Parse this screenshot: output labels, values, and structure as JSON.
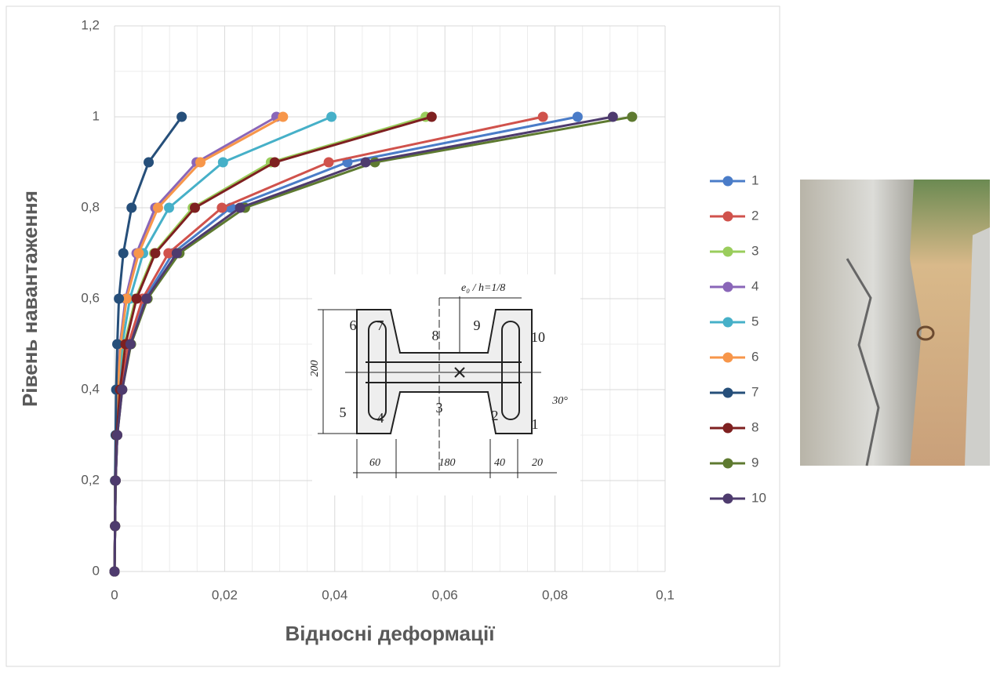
{
  "chart_data": {
    "type": "line",
    "x_label": "Відносні деформації",
    "y_label": "Рівень навантаження",
    "xlim": [
      0,
      0.1
    ],
    "xticks": [
      0,
      {
        "value": 0.02,
        "label": "0,02"
      },
      {
        "value": 0.04,
        "label": "0,04"
      },
      {
        "value": 0.06,
        "label": "0,06"
      },
      {
        "value": 0.08,
        "label": "0,08"
      },
      {
        "value": 0.1,
        "label": "0,1"
      }
    ],
    "ylim": [
      0,
      1.2
    ],
    "yticks": [
      0,
      {
        "value": 0.2,
        "label": "0,2"
      },
      {
        "value": 0.4,
        "label": "0,4"
      },
      {
        "value": 0.6,
        "label": "0,6"
      },
      {
        "value": 0.8,
        "label": "0,8"
      },
      1,
      {
        "value": 1.2,
        "label": "1,2"
      }
    ],
    "grid": true,
    "minor_grid": true,
    "legend": "right",
    "series": [
      {
        "name": "1",
        "color": "#4a7cc8",
        "x": [
          0,
          0.0001,
          0.0002,
          0.0005,
          0.0013,
          0.0027,
          0.0055,
          0.0106,
          0.0211,
          0.0423,
          0.0841
        ],
        "values": [
          0,
          0.1,
          0.2,
          0.3,
          0.4,
          0.5,
          0.6,
          0.7,
          0.8,
          0.9,
          1
        ]
      },
      {
        "name": "2",
        "color": "#d0524c",
        "x": [
          0,
          0.0001,
          0.0002,
          0.0005,
          0.0012,
          0.0025,
          0.0051,
          0.0098,
          0.0195,
          0.0389,
          0.0778
        ],
        "values": [
          0,
          0.1,
          0.2,
          0.3,
          0.4,
          0.5,
          0.6,
          0.7,
          0.8,
          0.9,
          1
        ]
      },
      {
        "name": "3",
        "color": "#9acd5c",
        "x": [
          0,
          0.0001,
          0.0002,
          0.0004,
          0.0009,
          0.0018,
          0.0038,
          0.0072,
          0.0142,
          0.0284,
          0.0565
        ],
        "values": [
          0,
          0.1,
          0.2,
          0.3,
          0.4,
          0.5,
          0.6,
          0.7,
          0.8,
          0.9,
          1
        ]
      },
      {
        "name": "4",
        "color": "#8a66b8",
        "x": [
          0,
          0.0001,
          0.0001,
          0.0003,
          0.0005,
          0.001,
          0.002,
          0.004,
          0.0074,
          0.0149,
          0.0294
        ],
        "values": [
          0,
          0.1,
          0.2,
          0.3,
          0.4,
          0.5,
          0.6,
          0.7,
          0.8,
          0.9,
          1
        ]
      },
      {
        "name": "5",
        "color": "#46b0c8",
        "x": [
          0,
          0.0001,
          0.0002,
          0.0003,
          0.0007,
          0.0014,
          0.0028,
          0.0052,
          0.0099,
          0.0197,
          0.0394
        ],
        "values": [
          0,
          0.1,
          0.2,
          0.3,
          0.4,
          0.5,
          0.6,
          0.7,
          0.8,
          0.9,
          1
        ]
      },
      {
        "name": "6",
        "color": "#f7964a",
        "x": [
          0,
          0.0001,
          0.0001,
          0.0003,
          0.0006,
          0.0011,
          0.0022,
          0.0044,
          0.0079,
          0.0156,
          0.0306
        ],
        "values": [
          0,
          0.1,
          0.2,
          0.3,
          0.4,
          0.5,
          0.6,
          0.7,
          0.8,
          0.9,
          1
        ]
      },
      {
        "name": "7",
        "color": "#264f7a",
        "x": [
          0,
          0.0001,
          0.0001,
          0.0002,
          0.0003,
          0.0005,
          0.0008,
          0.0016,
          0.0031,
          0.0062,
          0.0122
        ],
        "values": [
          0,
          0.1,
          0.2,
          0.3,
          0.4,
          0.5,
          0.6,
          0.7,
          0.8,
          0.9,
          1
        ]
      },
      {
        "name": "8",
        "color": "#7e2020",
        "x": [
          0,
          0.0001,
          0.0002,
          0.0004,
          0.001,
          0.002,
          0.004,
          0.0074,
          0.0146,
          0.0291,
          0.0576
        ],
        "values": [
          0,
          0.1,
          0.2,
          0.3,
          0.4,
          0.5,
          0.6,
          0.7,
          0.8,
          0.9,
          1
        ]
      },
      {
        "name": "9",
        "color": "#5e7a30",
        "x": [
          0,
          0.0001,
          0.0002,
          0.0005,
          0.0014,
          0.003,
          0.006,
          0.0118,
          0.0237,
          0.0473,
          0.094
        ],
        "values": [
          0,
          0.1,
          0.2,
          0.3,
          0.4,
          0.5,
          0.6,
          0.7,
          0.8,
          0.9,
          1
        ]
      },
      {
        "name": "10",
        "color": "#4e3b6e",
        "x": [
          0,
          0.0001,
          0.0002,
          0.0005,
          0.0014,
          0.0029,
          0.0058,
          0.0113,
          0.0228,
          0.0456,
          0.0905
        ],
        "values": [
          0,
          0.1,
          0.2,
          0.3,
          0.4,
          0.5,
          0.6,
          0.7,
          0.8,
          0.9,
          1
        ]
      }
    ]
  },
  "inset_diagram": {
    "labels": [
      "e₀ / h=1/8",
      "6",
      "7",
      "8",
      "9",
      "10",
      "5",
      "4",
      "3",
      "2",
      "1",
      "200",
      "60",
      "180",
      "40",
      "20",
      "30°"
    ]
  }
}
